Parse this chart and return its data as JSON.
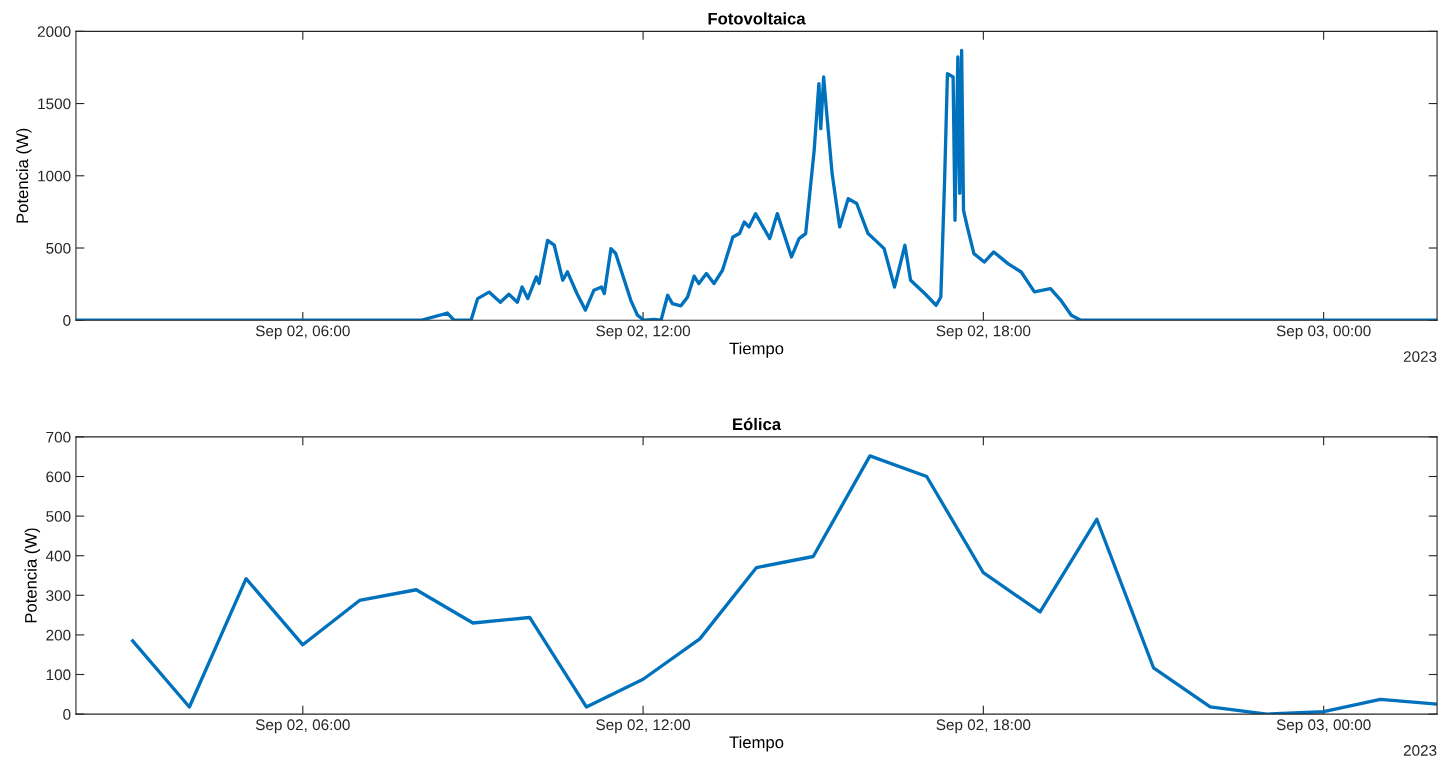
{
  "chart_data": [
    {
      "type": "line",
      "title": "Fotovoltaica",
      "xlabel": "Tiempo",
      "ylabel": "Potencia (W)",
      "annotations": [
        "2023"
      ],
      "xlim": [
        "2023-09-02T02:00",
        "2023-09-03T02:00"
      ],
      "ylim": [
        0,
        2000
      ],
      "yticks": [
        0,
        500,
        1000,
        1500,
        2000
      ],
      "xticks": [
        {
          "value": "2023-09-02T06:00",
          "label": "Sep 02, 06:00"
        },
        {
          "value": "2023-09-02T12:00",
          "label": "Sep 02, 12:00"
        },
        {
          "value": "2023-09-02T18:00",
          "label": "Sep 02, 18:00"
        },
        {
          "value": "2023-09-03T00:00",
          "label": "Sep 03, 00:00"
        }
      ],
      "series": [
        {
          "color": "#0072bd",
          "x": [
            "2023-09-02T02:00",
            "2023-09-02T08:05",
            "2023-09-02T08:33",
            "2023-09-02T08:40",
            "2023-09-02T08:58",
            "2023-09-02T09:05",
            "2023-09-02T09:17",
            "2023-09-02T09:29",
            "2023-09-02T09:38",
            "2023-09-02T09:47",
            "2023-09-02T09:52",
            "2023-09-02T09:58",
            "2023-09-02T10:07",
            "2023-09-02T10:10",
            "2023-09-02T10:19",
            "2023-09-02T10:26",
            "2023-09-02T10:35",
            "2023-09-02T10:40",
            "2023-09-02T10:50",
            "2023-09-02T10:59",
            "2023-09-02T11:08",
            "2023-09-02T11:16",
            "2023-09-02T11:19",
            "2023-09-02T11:26",
            "2023-09-02T11:31",
            "2023-09-02T11:47",
            "2023-09-02T11:54",
            "2023-09-02T12:01",
            "2023-09-02T12:12",
            "2023-09-02T12:19",
            "2023-09-02T12:26",
            "2023-09-02T12:31",
            "2023-09-02T12:40",
            "2023-09-02T12:47",
            "2023-09-02T12:54",
            "2023-09-02T12:59",
            "2023-09-02T13:07",
            "2023-09-02T13:15",
            "2023-09-02T13:24",
            "2023-09-02T13:35",
            "2023-09-02T13:42",
            "2023-09-02T13:47",
            "2023-09-02T13:52",
            "2023-09-02T13:59",
            "2023-09-02T14:14",
            "2023-09-02T14:22",
            "2023-09-02T14:37",
            "2023-09-02T14:45",
            "2023-09-02T14:52",
            "2023-09-02T15:01",
            "2023-09-02T15:06",
            "2023-09-02T15:08",
            "2023-09-02T15:11",
            "2023-09-02T15:14",
            "2023-09-02T15:20",
            "2023-09-02T15:28",
            "2023-09-02T15:37",
            "2023-09-02T15:46",
            "2023-09-02T15:58",
            "2023-09-02T16:05",
            "2023-09-02T16:15",
            "2023-09-02T16:26",
            "2023-09-02T16:37",
            "2023-09-02T16:43",
            "2023-09-02T16:58",
            "2023-09-02T17:10",
            "2023-09-02T17:15",
            "2023-09-02T17:19",
            "2023-09-02T17:22",
            "2023-09-02T17:28",
            "2023-09-02T17:30",
            "2023-09-02T17:33",
            "2023-09-02T17:35",
            "2023-09-02T17:37",
            "2023-09-02T17:39",
            "2023-09-02T17:43",
            "2023-09-02T17:50",
            "2023-09-02T18:01",
            "2023-09-02T18:11",
            "2023-09-02T18:26",
            "2023-09-02T18:40",
            "2023-09-02T18:54",
            "2023-09-02T19:11",
            "2023-09-02T19:22",
            "2023-09-02T19:33",
            "2023-09-02T19:43",
            "2023-09-03T02:00"
          ],
          "values": [
            0,
            0,
            50,
            0,
            0,
            150,
            195,
            125,
            180,
            125,
            230,
            150,
            300,
            255,
            553,
            520,
            277,
            335,
            185,
            70,
            208,
            230,
            185,
            496,
            462,
            138,
            35,
            0,
            5,
            0,
            173,
            115,
            100,
            160,
            305,
            254,
            323,
            254,
            346,
            576,
            600,
            680,
            646,
            738,
            565,
            738,
            438,
            565,
            600,
            1176,
            1638,
            1326,
            1684,
            1453,
            1015,
            646,
            842,
            808,
            600,
            558,
            496,
            230,
            519,
            277,
            185,
            104,
            161,
            969,
            1707,
            1684,
            692,
            1822,
            879,
            1868,
            761,
            646,
            461,
            403,
            473,
            392,
            334,
            196,
            219,
            138,
            35,
            0,
            0
          ]
        }
      ]
    },
    {
      "type": "line",
      "title": "Eólica",
      "xlabel": "Tiempo",
      "ylabel": "Potencia (W)",
      "annotations": [
        "2023"
      ],
      "xlim": [
        "2023-09-02T02:00",
        "2023-09-03T02:00"
      ],
      "ylim": [
        0,
        700
      ],
      "yticks": [
        0,
        100,
        200,
        300,
        400,
        500,
        600,
        700
      ],
      "xticks": [
        {
          "value": "2023-09-02T06:00",
          "label": "Sep 02, 06:00"
        },
        {
          "value": "2023-09-02T12:00",
          "label": "Sep 02, 12:00"
        },
        {
          "value": "2023-09-02T18:00",
          "label": "Sep 02, 18:00"
        },
        {
          "value": "2023-09-03T00:00",
          "label": "Sep 03, 00:00"
        }
      ],
      "series": [
        {
          "color": "#0072bd",
          "x": [
            "2023-09-02T03:00",
            "2023-09-02T04:00",
            "2023-09-02T05:00",
            "2023-09-02T06:00",
            "2023-09-02T07:00",
            "2023-09-02T08:00",
            "2023-09-02T09:00",
            "2023-09-02T10:00",
            "2023-09-02T11:00",
            "2023-09-02T12:00",
            "2023-09-02T13:00",
            "2023-09-02T14:00",
            "2023-09-02T15:00",
            "2023-09-02T16:00",
            "2023-09-02T17:00",
            "2023-09-02T18:00",
            "2023-09-02T19:00",
            "2023-09-02T20:00",
            "2023-09-02T21:00",
            "2023-09-02T22:00",
            "2023-09-02T23:00",
            "2023-09-03T00:00",
            "2023-09-03T01:00",
            "2023-09-03T02:00"
          ],
          "values": [
            185,
            18,
            342,
            175,
            287,
            314,
            230,
            244,
            18,
            88,
            190,
            370,
            398,
            652,
            600,
            357,
            258,
            492,
            117,
            18,
            0,
            6,
            37,
            25
          ]
        }
      ]
    }
  ]
}
